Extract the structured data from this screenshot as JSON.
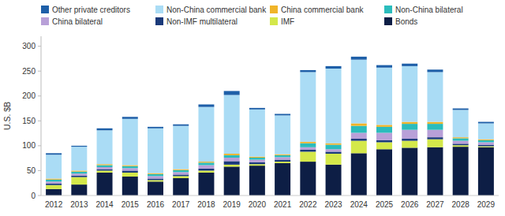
{
  "chart_data": {
    "type": "bar",
    "stacked": true,
    "y_label": "U.S. $B",
    "categories": [
      "2012",
      "2013",
      "2014",
      "2015",
      "2016",
      "2017",
      "2018",
      "2019",
      "2020",
      "2021",
      "2022",
      "2023",
      "2024",
      "2025",
      "2026",
      "2027",
      "2028",
      "2029"
    ],
    "series": [
      {
        "name": "Bonds",
        "color": "#0d1e45",
        "values": [
          13,
          22,
          46,
          38,
          28,
          35,
          46,
          58,
          60,
          65,
          68,
          62,
          85,
          93,
          96,
          97,
          98,
          97
        ]
      },
      {
        "name": "IMF",
        "color": "#d4e84a",
        "values": [
          8,
          15,
          4,
          8,
          3,
          4,
          4,
          4,
          3,
          3,
          20,
          22,
          25,
          14,
          14,
          16,
          3,
          2
        ]
      },
      {
        "name": "Non-IMF multilateral",
        "color": "#1a3a7a",
        "values": [
          3,
          3,
          3,
          4,
          3,
          3,
          4,
          7,
          4,
          4,
          4,
          4,
          4,
          4,
          4,
          4,
          3,
          3
        ]
      },
      {
        "name": "China bilateral",
        "color": "#b8a0d8",
        "values": [
          4,
          4,
          4,
          5,
          5,
          5,
          7,
          7,
          5,
          5,
          5,
          5,
          12,
          15,
          18,
          15,
          6,
          5
        ]
      },
      {
        "name": "Non-China bilateral",
        "color": "#2bbcbc",
        "values": [
          4,
          4,
          4,
          4,
          4,
          4,
          5,
          5,
          4,
          4,
          8,
          9,
          14,
          12,
          12,
          12,
          5,
          4
        ]
      },
      {
        "name": "China commercial bank",
        "color": "#f0b429",
        "values": [
          2,
          2,
          2,
          2,
          2,
          2,
          2,
          3,
          2,
          2,
          3,
          3,
          5,
          4,
          4,
          4,
          2,
          2
        ]
      },
      {
        "name": "Non-China commercial bank",
        "color": "#aadcf5",
        "values": [
          48,
          48,
          68,
          93,
          90,
          87,
          110,
          118,
          95,
          78,
          140,
          150,
          128,
          115,
          112,
          100,
          55,
          32
        ]
      },
      {
        "name": "Other private creditors",
        "color": "#1e5fa8",
        "values": [
          3,
          2,
          4,
          4,
          3,
          3,
          5,
          8,
          3,
          3,
          4,
          5,
          6,
          5,
          5,
          5,
          3,
          3
        ]
      }
    ],
    "ylim": [
      0,
      320
    ],
    "yticks": [
      0,
      50,
      100,
      150,
      200,
      250,
      300
    ],
    "grid": false,
    "legend": "top"
  }
}
